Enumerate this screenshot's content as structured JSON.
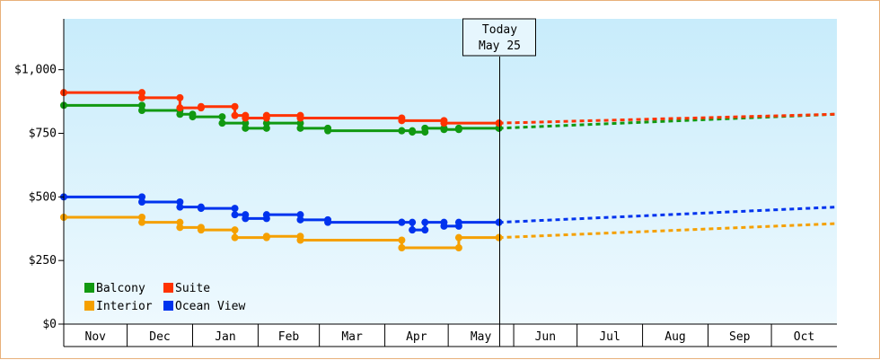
{
  "chart_data": {
    "type": "line",
    "title": "",
    "xlabel": "",
    "ylabel": "",
    "ylim": [
      0,
      1200
    ],
    "y_ticks": [
      {
        "value": 0,
        "label": "$0"
      },
      {
        "value": 250,
        "label": "$250"
      },
      {
        "value": 500,
        "label": "$500"
      },
      {
        "value": 750,
        "label": "$750"
      },
      {
        "value": 1000,
        "label": "$1,000"
      }
    ],
    "x_range": [
      "2023-11-01",
      "2024-10-31"
    ],
    "x_ticks": [
      "Nov",
      "Dec",
      "Jan",
      "Feb",
      "Mar",
      "Apr",
      "May",
      "Jun",
      "Jul",
      "Aug",
      "Sep",
      "Oct"
    ],
    "x_tick_dates": [
      "2023-11-01",
      "2023-12-01",
      "2024-01-01",
      "2024-02-01",
      "2024-03-01",
      "2024-04-01",
      "2024-05-01",
      "2024-06-01",
      "2024-07-01",
      "2024-08-01",
      "2024-09-01",
      "2024-10-01"
    ],
    "today": {
      "date": "2024-05-25",
      "line1": "Today",
      "line2": "May 25"
    },
    "background_gradient": [
      "#c8ecfb",
      "#eef9fe"
    ],
    "grid": false,
    "legend_position": "bottom-left",
    "series": [
      {
        "name": "Balcony",
        "color": "#119911",
        "points": [
          {
            "date": "2023-11-01",
            "value": 860
          },
          {
            "date": "2023-12-08",
            "value": 840
          },
          {
            "date": "2023-12-26",
            "value": 825
          },
          {
            "date": "2024-01-01",
            "value": 815
          },
          {
            "date": "2024-01-15",
            "value": 790
          },
          {
            "date": "2024-01-26",
            "value": 770
          },
          {
            "date": "2024-02-05",
            "value": 790
          },
          {
            "date": "2024-02-21",
            "value": 770
          },
          {
            "date": "2024-03-05",
            "value": 760
          },
          {
            "date": "2024-04-09",
            "value": 760
          },
          {
            "date": "2024-04-14",
            "value": 755
          },
          {
            "date": "2024-04-20",
            "value": 770
          },
          {
            "date": "2024-04-29",
            "value": 765
          },
          {
            "date": "2024-05-06",
            "value": 770
          },
          {
            "date": "2024-05-25",
            "value": 770
          }
        ],
        "forecast_end": {
          "date": "2024-10-31",
          "value": 825
        }
      },
      {
        "name": "Suite",
        "color": "#ff3300",
        "points": [
          {
            "date": "2023-11-01",
            "value": 910
          },
          {
            "date": "2023-12-08",
            "value": 890
          },
          {
            "date": "2023-12-26",
            "value": 850
          },
          {
            "date": "2024-01-05",
            "value": 855
          },
          {
            "date": "2024-01-21",
            "value": 820
          },
          {
            "date": "2024-01-26",
            "value": 810
          },
          {
            "date": "2024-02-05",
            "value": 820
          },
          {
            "date": "2024-02-21",
            "value": 810
          },
          {
            "date": "2024-04-09",
            "value": 800
          },
          {
            "date": "2024-04-29",
            "value": 790
          },
          {
            "date": "2024-05-25",
            "value": 790
          }
        ],
        "forecast_end": {
          "date": "2024-10-31",
          "value": 825
        }
      },
      {
        "name": "Interior",
        "color": "#f5a000",
        "points": [
          {
            "date": "2023-11-01",
            "value": 420
          },
          {
            "date": "2023-12-08",
            "value": 400
          },
          {
            "date": "2023-12-26",
            "value": 380
          },
          {
            "date": "2024-01-05",
            "value": 370
          },
          {
            "date": "2024-01-21",
            "value": 340
          },
          {
            "date": "2024-02-05",
            "value": 345
          },
          {
            "date": "2024-02-21",
            "value": 330
          },
          {
            "date": "2024-04-09",
            "value": 300
          },
          {
            "date": "2024-05-06",
            "value": 340
          },
          {
            "date": "2024-05-25",
            "value": 340
          }
        ],
        "forecast_end": {
          "date": "2024-10-31",
          "value": 395
        }
      },
      {
        "name": "Ocean View",
        "color": "#0033ee",
        "points": [
          {
            "date": "2023-11-01",
            "value": 500
          },
          {
            "date": "2023-12-08",
            "value": 480
          },
          {
            "date": "2023-12-26",
            "value": 460
          },
          {
            "date": "2024-01-05",
            "value": 455
          },
          {
            "date": "2024-01-21",
            "value": 430
          },
          {
            "date": "2024-01-26",
            "value": 415
          },
          {
            "date": "2024-02-05",
            "value": 430
          },
          {
            "date": "2024-02-21",
            "value": 410
          },
          {
            "date": "2024-03-05",
            "value": 400
          },
          {
            "date": "2024-04-09",
            "value": 400
          },
          {
            "date": "2024-04-14",
            "value": 370
          },
          {
            "date": "2024-04-20",
            "value": 400
          },
          {
            "date": "2024-04-29",
            "value": 385
          },
          {
            "date": "2024-05-06",
            "value": 400
          },
          {
            "date": "2024-05-25",
            "value": 400
          }
        ],
        "forecast_end": {
          "date": "2024-10-31",
          "value": 460
        }
      }
    ]
  }
}
